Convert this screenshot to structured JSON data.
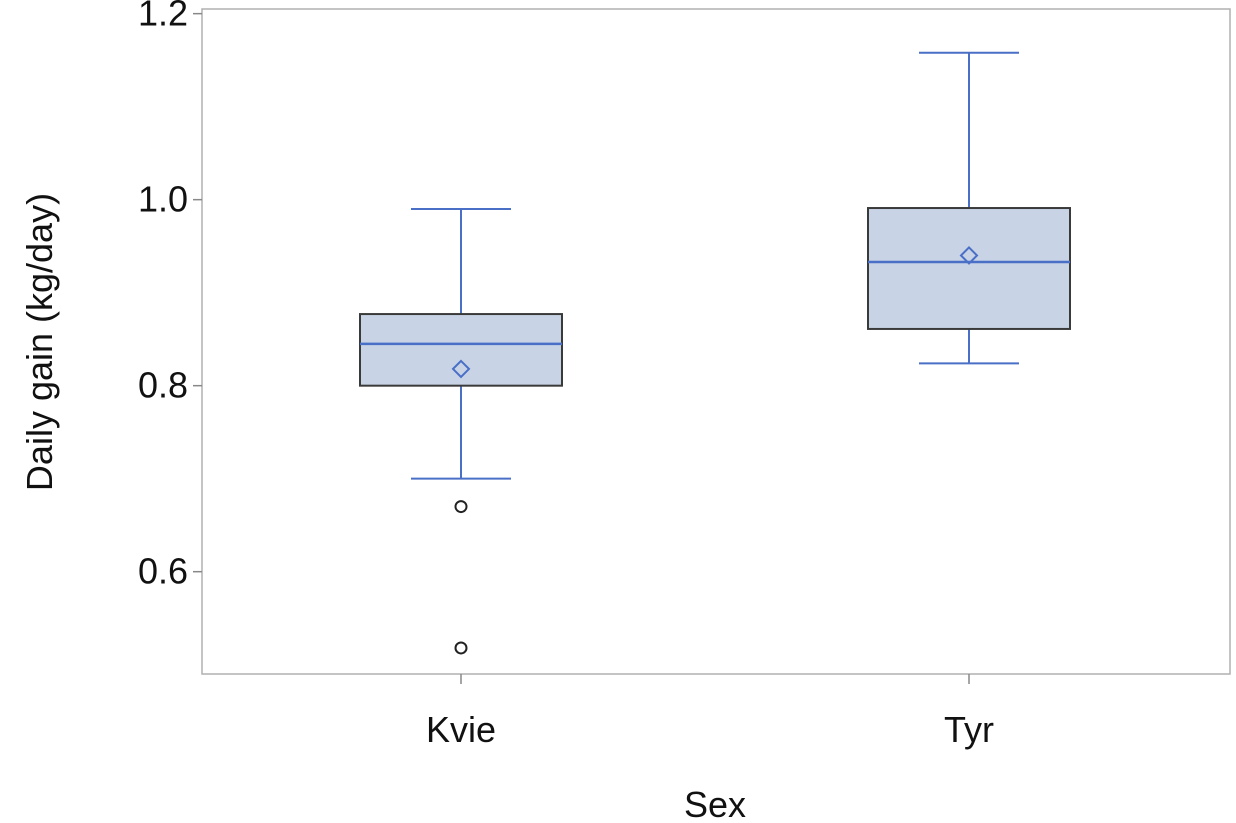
{
  "chart_data": {
    "type": "boxplot",
    "title": "",
    "xlabel": "Sex",
    "ylabel": "Daily gain (kg/day)",
    "ylim": [
      0.49,
      1.205
    ],
    "yticks": [
      {
        "value": 0.6,
        "label": "0.6"
      },
      {
        "value": 0.8,
        "label": "0.8"
      },
      {
        "value": 1.0,
        "label": "1.0"
      },
      {
        "value": 1.2,
        "label": "1.2"
      }
    ],
    "categories": [
      "Kvie",
      "Tyr"
    ],
    "boxes": [
      {
        "category": "Kvie",
        "whisker_low": 0.7,
        "q1": 0.8,
        "median": 0.845,
        "q3": 0.877,
        "whisker_high": 0.99,
        "mean": 0.818,
        "outliers": [
          0.67,
          0.518
        ]
      },
      {
        "category": "Tyr",
        "whisker_low": 0.824,
        "q1": 0.861,
        "median": 0.933,
        "q3": 0.991,
        "whisker_high": 1.158,
        "mean": 0.94,
        "outliers": []
      }
    ],
    "grid": false,
    "legend": "none",
    "colors": {
      "box_fill": "#c8d4e6",
      "box_edge": "#3a3a3a",
      "whisker": "#4a6fc6",
      "median": "#4a6fc6",
      "mean_marker": "#4a6fc6",
      "outlier": "#222222",
      "frame": "#b0b0b0"
    }
  }
}
